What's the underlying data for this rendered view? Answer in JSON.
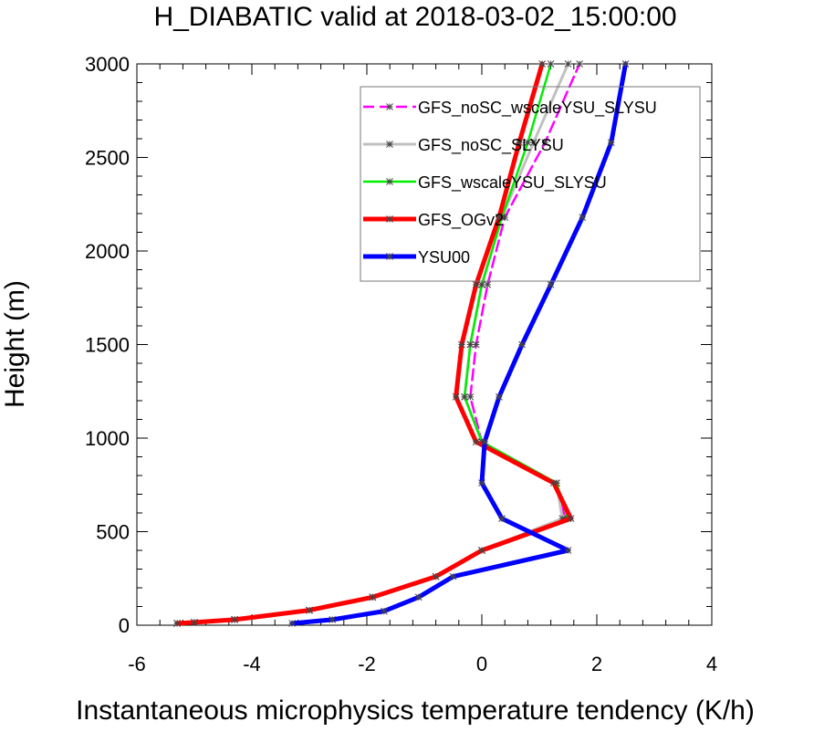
{
  "chart_data": {
    "type": "line",
    "title": "H_DIABATIC valid at 2018-03-02_15:00:00",
    "xlabel": "Instantaneous microphysics temperature tendency (K/h)",
    "ylabel": "Height (m)",
    "xlim": [
      -6,
      4
    ],
    "ylim": [
      0,
      3000
    ],
    "x_ticks": [
      -6,
      -4,
      -2,
      0,
      2,
      4
    ],
    "y_ticks": [
      0,
      500,
      1000,
      1500,
      2000,
      2500,
      3000
    ],
    "x_tick_labels": [
      "-6",
      "-4",
      "-2",
      "0",
      "2",
      "4"
    ],
    "y_tick_labels": [
      "0",
      "500",
      "1000",
      "1500",
      "2000",
      "2500",
      "3000"
    ],
    "legend_position": "top-right",
    "grid": false,
    "series": [
      {
        "name": "GFS_noSC_wscaleYSU_SLYSU",
        "color": "#ff00ff",
        "dashed": true,
        "width": 2.5,
        "points": [
          [
            -5.3,
            10
          ],
          [
            -5.0,
            15
          ],
          [
            -4.3,
            30
          ],
          [
            -3.0,
            80
          ],
          [
            -1.9,
            150
          ],
          [
            -0.8,
            260
          ],
          [
            0.0,
            400
          ],
          [
            1.45,
            570
          ],
          [
            1.3,
            760
          ],
          [
            0.0,
            980
          ],
          [
            -0.2,
            1220
          ],
          [
            -0.1,
            1500
          ],
          [
            0.1,
            1820
          ],
          [
            0.4,
            2180
          ],
          [
            1.1,
            2580
          ],
          [
            1.7,
            3000
          ]
        ]
      },
      {
        "name": "GFS_noSC_SLYSU",
        "color": "#c0c0c0",
        "dashed": false,
        "width": 3,
        "points": [
          [
            -5.3,
            10
          ],
          [
            -5.0,
            15
          ],
          [
            -4.3,
            30
          ],
          [
            -3.0,
            80
          ],
          [
            -1.9,
            150
          ],
          [
            -0.8,
            260
          ],
          [
            0.0,
            400
          ],
          [
            1.4,
            570
          ],
          [
            1.3,
            760
          ],
          [
            0.0,
            980
          ],
          [
            -0.3,
            1220
          ],
          [
            -0.2,
            1500
          ],
          [
            0.0,
            1820
          ],
          [
            0.35,
            2180
          ],
          [
            0.9,
            2580
          ],
          [
            1.5,
            3000
          ]
        ]
      },
      {
        "name": "GFS_wscaleYSU_SLYSU",
        "color": "#00ee00",
        "dashed": false,
        "width": 2.5,
        "points": [
          [
            -5.3,
            10
          ],
          [
            -5.0,
            15
          ],
          [
            -4.3,
            30
          ],
          [
            -3.0,
            80
          ],
          [
            -1.9,
            150
          ],
          [
            -0.8,
            260
          ],
          [
            0.0,
            400
          ],
          [
            1.5,
            570
          ],
          [
            1.3,
            760
          ],
          [
            0.0,
            980
          ],
          [
            -0.3,
            1220
          ],
          [
            -0.2,
            1500
          ],
          [
            0.0,
            1820
          ],
          [
            0.35,
            2180
          ],
          [
            0.8,
            2580
          ],
          [
            1.2,
            3000
          ]
        ]
      },
      {
        "name": "GFS_OGv2",
        "color": "#ff0000",
        "dashed": false,
        "width": 5,
        "points": [
          [
            -5.3,
            10
          ],
          [
            -5.0,
            15
          ],
          [
            -4.3,
            30
          ],
          [
            -3.0,
            80
          ],
          [
            -1.9,
            150
          ],
          [
            -0.8,
            260
          ],
          [
            0.0,
            400
          ],
          [
            1.55,
            570
          ],
          [
            1.25,
            760
          ],
          [
            -0.1,
            980
          ],
          [
            -0.45,
            1220
          ],
          [
            -0.35,
            1500
          ],
          [
            -0.1,
            1820
          ],
          [
            0.3,
            2180
          ],
          [
            0.65,
            2580
          ],
          [
            1.05,
            3000
          ]
        ]
      },
      {
        "name": "YSU00",
        "color": "#0000ff",
        "dashed": false,
        "width": 5,
        "points": [
          [
            -3.3,
            10
          ],
          [
            -2.6,
            30
          ],
          [
            -1.7,
            75
          ],
          [
            -1.1,
            150
          ],
          [
            -0.5,
            260
          ],
          [
            1.5,
            400
          ],
          [
            0.35,
            570
          ],
          [
            0.0,
            760
          ],
          [
            0.05,
            980
          ],
          [
            0.3,
            1220
          ],
          [
            0.7,
            1500
          ],
          [
            1.2,
            1820
          ],
          [
            1.75,
            2180
          ],
          [
            2.25,
            2580
          ],
          [
            2.5,
            3000
          ]
        ]
      }
    ]
  }
}
